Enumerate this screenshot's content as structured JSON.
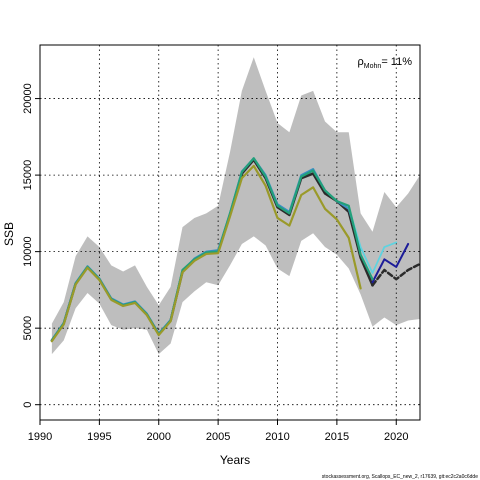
{
  "chart_data": {
    "type": "line",
    "title": "",
    "xlabel": "Years",
    "ylabel": "SSB",
    "xlim": [
      1990,
      2022
    ],
    "ylim": [
      -1000,
      23500
    ],
    "x_ticks": [
      1990,
      1995,
      2000,
      2005,
      2010,
      2015,
      2020
    ],
    "y_ticks": [
      0,
      5000,
      10000,
      15000,
      20000
    ],
    "grid": true,
    "annotation": {
      "rho_symbol": "ρ",
      "rho_subscript": "Mohn",
      "rho_value": "= 11%"
    },
    "footer": "stockassessment.org, Scallops_EC_new_2, r17639, git:ec2c2a0c6dde",
    "confidence_band": {
      "color": "#bebebe",
      "x": [
        1991,
        1992,
        1993,
        1994,
        1995,
        1996,
        1997,
        1998,
        1999,
        2000,
        2001,
        2002,
        2003,
        2004,
        2005,
        2006,
        2007,
        2008,
        2009,
        2010,
        2011,
        2012,
        2013,
        2014,
        2015,
        2016,
        2017,
        2018,
        2019,
        2020,
        2021,
        2022
      ],
      "upper": [
        5300,
        6700,
        9700,
        11000,
        10300,
        9100,
        8700,
        9100,
        7700,
        6500,
        7700,
        11600,
        12200,
        12500,
        13000,
        16500,
        20500,
        22700,
        20500,
        18400,
        17800,
        20200,
        20500,
        18500,
        17800,
        17800,
        12500,
        11300,
        13900,
        12900,
        13800,
        15000
      ],
      "lower": [
        3300,
        4200,
        6300,
        7300,
        6600,
        5200,
        4900,
        5000,
        4900,
        3300,
        4000,
        6700,
        7400,
        8000,
        7800,
        9100,
        10500,
        11000,
        10400,
        8900,
        8400,
        10700,
        11200,
        10300,
        9800,
        8900,
        7200,
        5100,
        5700,
        5200,
        5500,
        5600
      ]
    },
    "series": [
      {
        "color": "#2b2b2b",
        "width": 2.5,
        "dashed": false,
        "x": [
          1991,
          1992,
          1993,
          1994,
          1995,
          1996,
          1997,
          1998,
          1999,
          2000,
          2001,
          2002,
          2003,
          2004,
          2005,
          2006,
          2007,
          2008,
          2009,
          2010,
          2011,
          2012,
          2013,
          2014,
          2015,
          2016,
          2017,
          2018
        ],
        "values": [
          4200,
          5300,
          7900,
          9000,
          8200,
          6900,
          6500,
          6700,
          5900,
          4600,
          5500,
          8700,
          9500,
          9900,
          10000,
          12400,
          15100,
          16000,
          14800,
          12900,
          12400,
          14800,
          15100,
          13800,
          13300,
          12600,
          9600,
          7800
        ]
      },
      {
        "color": "#2b2b2b",
        "width": 2.5,
        "dashed": true,
        "x": [
          2018,
          2019,
          2020,
          2021,
          2022
        ],
        "values": [
          7800,
          8800,
          8200,
          8800,
          9200
        ]
      },
      {
        "color": "#3b8fc4",
        "width": 2,
        "x": [
          1991,
          1992,
          1993,
          1994,
          1995,
          1996,
          1997,
          1998,
          1999,
          2000,
          2001,
          2002,
          2003,
          2004,
          2005,
          2006,
          2007,
          2008,
          2009,
          2010,
          2011,
          2012,
          2013,
          2014,
          2015,
          2016,
          2017
        ],
        "values": [
          4250,
          5350,
          7950,
          9050,
          8250,
          6950,
          6550,
          6750,
          5950,
          4650,
          5550,
          8750,
          9550,
          10000,
          10100,
          12500,
          15250,
          16100,
          15000,
          13100,
          12600,
          15000,
          15400,
          14000,
          13300,
          12800,
          10100
        ]
      },
      {
        "color": "#5fd3e0",
        "width": 1.8,
        "x": [
          2016,
          2017,
          2018,
          2019,
          2020
        ],
        "values": [
          12900,
          10300,
          8600,
          10300,
          10600
        ]
      },
      {
        "color": "#1c1c99",
        "width": 2,
        "x": [
          2018,
          2019,
          2020,
          2021
        ],
        "values": [
          8000,
          9500,
          9000,
          10500
        ]
      },
      {
        "color": "#22a07a",
        "width": 2.2,
        "x": [
          1991,
          1992,
          1993,
          1994,
          1995,
          1996,
          1997,
          1998,
          1999,
          2000,
          2001,
          2002,
          2003,
          2004,
          2005,
          2006,
          2007,
          2008,
          2009,
          2010,
          2011,
          2012,
          2013,
          2014,
          2015,
          2016,
          2017,
          2018
        ],
        "values": [
          4200,
          5300,
          7900,
          9000,
          8200,
          6900,
          6500,
          6700,
          5900,
          4600,
          5500,
          8800,
          9500,
          9950,
          10000,
          12500,
          15200,
          16100,
          14900,
          13000,
          12500,
          14900,
          15300,
          14000,
          13300,
          13000,
          9800,
          8200
        ]
      },
      {
        "color": "#9a9a2a",
        "width": 2.2,
        "x": [
          1991,
          1992,
          1993,
          1994,
          1995,
          1996,
          1997,
          1998,
          1999,
          2000,
          2001,
          2002,
          2003,
          2004,
          2005,
          2006,
          2007,
          2008,
          2009,
          2010,
          2011,
          2012,
          2013,
          2014,
          2015,
          2016,
          2017
        ],
        "values": [
          4150,
          5250,
          7850,
          8950,
          8150,
          6850,
          6450,
          6650,
          5850,
          4550,
          5450,
          8650,
          9400,
          9850,
          9900,
          12300,
          14800,
          15600,
          14300,
          12200,
          11700,
          13700,
          14200,
          12800,
          12100,
          10900,
          7600
        ]
      }
    ]
  }
}
